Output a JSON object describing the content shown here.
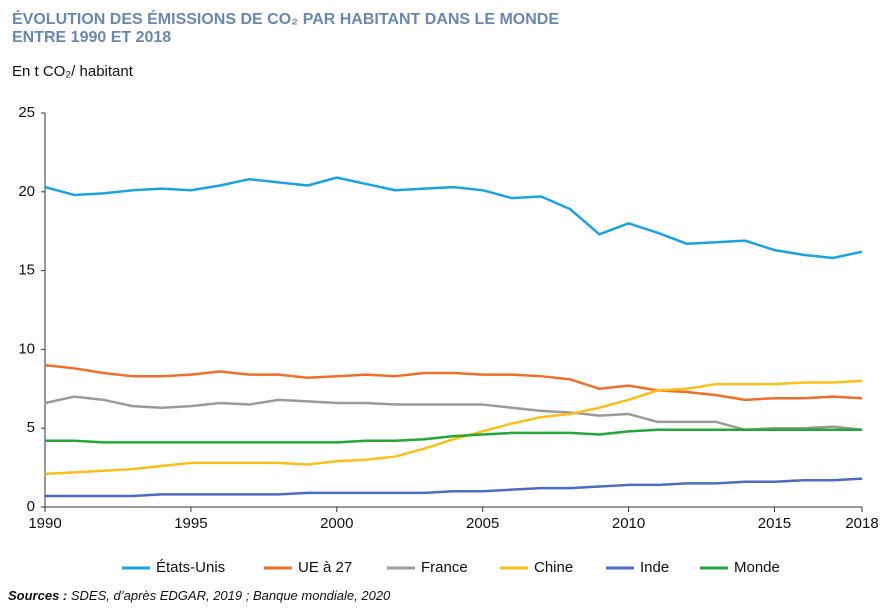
{
  "chart_data": {
    "type": "line",
    "title": [
      "ÉVOLUTION DES ÉMISSIONS DE CO₂ PAR HABITANT DANS LE MONDE",
      "ENTRE 1990 ET 2018"
    ],
    "subtitle": "En t CO₂/ habitant",
    "source_label": "Sources :",
    "source": "SDES, d’après EDGAR, 2019 ; Banque mondiale, 2020",
    "x": [
      1990,
      1991,
      1992,
      1993,
      1994,
      1995,
      1996,
      1997,
      1998,
      1999,
      2000,
      2001,
      2002,
      2003,
      2004,
      2005,
      2006,
      2007,
      2008,
      2009,
      2010,
      2011,
      2012,
      2013,
      2014,
      2015,
      2016,
      2017,
      2018
    ],
    "xlim": [
      1990,
      2018
    ],
    "xticks": [
      1990,
      1995,
      2000,
      2005,
      2010,
      2015,
      2018
    ],
    "ylim": [
      0,
      25
    ],
    "yticks": [
      0,
      5,
      10,
      15,
      20,
      25
    ],
    "grid": false,
    "legend": "bottom",
    "series": [
      {
        "name": "États-Unis",
        "color": "#1aa3e0",
        "values": [
          20.3,
          19.8,
          19.9,
          20.1,
          20.2,
          20.1,
          20.4,
          20.8,
          20.6,
          20.4,
          20.9,
          20.5,
          20.1,
          20.2,
          20.3,
          20.1,
          19.6,
          19.7,
          18.9,
          17.3,
          18.0,
          17.4,
          16.7,
          16.8,
          16.9,
          16.3,
          16.0,
          15.8,
          16.2
        ]
      },
      {
        "name": "UE à 27",
        "color": "#ee7027",
        "values": [
          9.0,
          8.8,
          8.5,
          8.3,
          8.3,
          8.4,
          8.6,
          8.4,
          8.4,
          8.2,
          8.3,
          8.4,
          8.3,
          8.5,
          8.5,
          8.4,
          8.4,
          8.3,
          8.1,
          7.5,
          7.7,
          7.4,
          7.3,
          7.1,
          6.8,
          6.9,
          6.9,
          7.0,
          6.9
        ]
      },
      {
        "name": "France",
        "color": "#9a9a9a",
        "values": [
          6.6,
          7.0,
          6.8,
          6.4,
          6.3,
          6.4,
          6.6,
          6.5,
          6.8,
          6.7,
          6.6,
          6.6,
          6.5,
          6.5,
          6.5,
          6.5,
          6.3,
          6.1,
          6.0,
          5.8,
          5.9,
          5.4,
          5.4,
          5.4,
          4.9,
          5.0,
          5.0,
          5.1,
          4.9
        ]
      },
      {
        "name": "Chine",
        "color": "#fbbf1b",
        "values": [
          2.1,
          2.2,
          2.3,
          2.4,
          2.6,
          2.8,
          2.8,
          2.8,
          2.8,
          2.7,
          2.9,
          3.0,
          3.2,
          3.7,
          4.3,
          4.8,
          5.3,
          5.7,
          5.9,
          6.3,
          6.8,
          7.4,
          7.5,
          7.8,
          7.8,
          7.8,
          7.9,
          7.9,
          8.0
        ]
      },
      {
        "name": "Inde",
        "color": "#4a6cc1",
        "values": [
          0.7,
          0.7,
          0.7,
          0.7,
          0.8,
          0.8,
          0.8,
          0.8,
          0.8,
          0.9,
          0.9,
          0.9,
          0.9,
          0.9,
          1.0,
          1.0,
          1.1,
          1.2,
          1.2,
          1.3,
          1.4,
          1.4,
          1.5,
          1.5,
          1.6,
          1.6,
          1.7,
          1.7,
          1.8
        ]
      },
      {
        "name": "Monde",
        "color": "#23a63a",
        "values": [
          4.2,
          4.2,
          4.1,
          4.1,
          4.1,
          4.1,
          4.1,
          4.1,
          4.1,
          4.1,
          4.1,
          4.2,
          4.2,
          4.3,
          4.5,
          4.6,
          4.7,
          4.7,
          4.7,
          4.6,
          4.8,
          4.9,
          4.9,
          4.9,
          4.9,
          4.9,
          4.9,
          4.9,
          4.9
        ]
      }
    ]
  }
}
